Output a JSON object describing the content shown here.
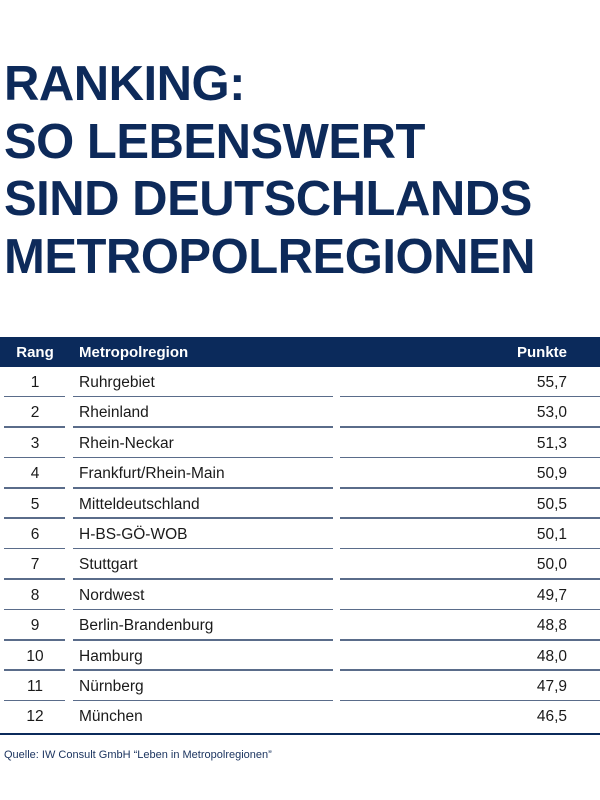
{
  "title_lines": [
    "RANKING:",
    "SO LEBENSWERT",
    "SIND DEUTSCHLANDS",
    "METROPOLREGIONEN"
  ],
  "colors": {
    "accent": "#0b2a5b",
    "row_divider": "#5a6c8a"
  },
  "chart_data": {
    "type": "table",
    "columns": [
      "Rang",
      "Metropolregion",
      "Punkte"
    ],
    "rows": [
      [
        "1",
        "Ruhrgebiet",
        "55,7"
      ],
      [
        "2",
        "Rheinland",
        "53,0"
      ],
      [
        "3",
        "Rhein-Neckar",
        "51,3"
      ],
      [
        "4",
        "Frankfurt/Rhein-Main",
        "50,9"
      ],
      [
        "5",
        "Mitteldeutschland",
        "50,5"
      ],
      [
        "6",
        "H-BS-GÖ-WOB",
        "50,1"
      ],
      [
        "7",
        "Stuttgart",
        "50,0"
      ],
      [
        "8",
        "Nordwest",
        "49,7"
      ],
      [
        "9",
        "Berlin-Brandenburg",
        "48,8"
      ],
      [
        "10",
        "Hamburg",
        "48,0"
      ],
      [
        "11",
        "Nürnberg",
        "47,9"
      ],
      [
        "12",
        "München",
        "46,5"
      ]
    ]
  },
  "source": "Quelle: IW Consult GmbH “Leben in Metropolregionen”"
}
